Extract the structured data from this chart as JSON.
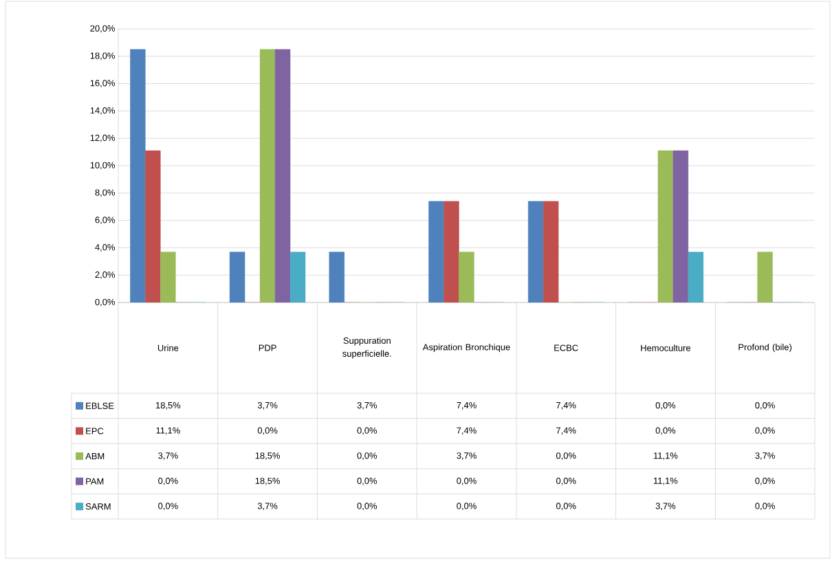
{
  "chart_data": {
    "type": "bar",
    "categories": [
      "Urine",
      "PDP",
      "Suppuration superficielle.",
      "Aspiration Bronchique",
      "ECBC",
      "Hemoculture",
      "Profond (bile)"
    ],
    "series": [
      {
        "name": "EBLSE",
        "color": "#4f81bd",
        "values": [
          18.5,
          3.7,
          3.7,
          7.4,
          7.4,
          0.0,
          0.0
        ],
        "value_labels": [
          "18,5%",
          "3,7%",
          "3,7%",
          "7,4%",
          "7,4%",
          "0,0%",
          "0,0%"
        ]
      },
      {
        "name": "EPC",
        "color": "#c0504d",
        "values": [
          11.1,
          0.0,
          0.0,
          7.4,
          7.4,
          0.0,
          0.0
        ],
        "value_labels": [
          "11,1%",
          "0,0%",
          "0,0%",
          "7,4%",
          "7,4%",
          "0,0%",
          "0,0%"
        ]
      },
      {
        "name": "ABM",
        "color": "#9bbb59",
        "values": [
          3.7,
          18.5,
          0.0,
          3.7,
          0.0,
          11.1,
          3.7
        ],
        "value_labels": [
          "3,7%",
          "18,5%",
          "0,0%",
          "3,7%",
          "0,0%",
          "11,1%",
          "3,7%"
        ]
      },
      {
        "name": "PAM",
        "color": "#8064a2",
        "values": [
          0.0,
          18.5,
          0.0,
          0.0,
          0.0,
          11.1,
          0.0
        ],
        "value_labels": [
          "0,0%",
          "18,5%",
          "0,0%",
          "0,0%",
          "0,0%",
          "11,1%",
          "0,0%"
        ]
      },
      {
        "name": "SARM",
        "color": "#4bacc6",
        "values": [
          0.0,
          3.7,
          0.0,
          0.0,
          0.0,
          3.7,
          0.0
        ],
        "value_labels": [
          "0,0%",
          "3,7%",
          "0,0%",
          "0,0%",
          "0,0%",
          "3,7%",
          "0,0%"
        ]
      }
    ],
    "ylim": [
      0,
      20
    ],
    "yticks": [
      {
        "value": 0,
        "label": "0,0%"
      },
      {
        "value": 2,
        "label": "2,0%"
      },
      {
        "value": 4,
        "label": "4,0%"
      },
      {
        "value": 6,
        "label": "6,0%"
      },
      {
        "value": 8,
        "label": "8,0%"
      },
      {
        "value": 10,
        "label": "10,0%"
      },
      {
        "value": 12,
        "label": "12,0%"
      },
      {
        "value": 14,
        "label": "14,0%"
      },
      {
        "value": 16,
        "label": "16,0%"
      },
      {
        "value": 18,
        "label": "18,0%"
      },
      {
        "value": 20,
        "label": "20,0%"
      }
    ],
    "grid": "y",
    "legend": "bottom"
  }
}
